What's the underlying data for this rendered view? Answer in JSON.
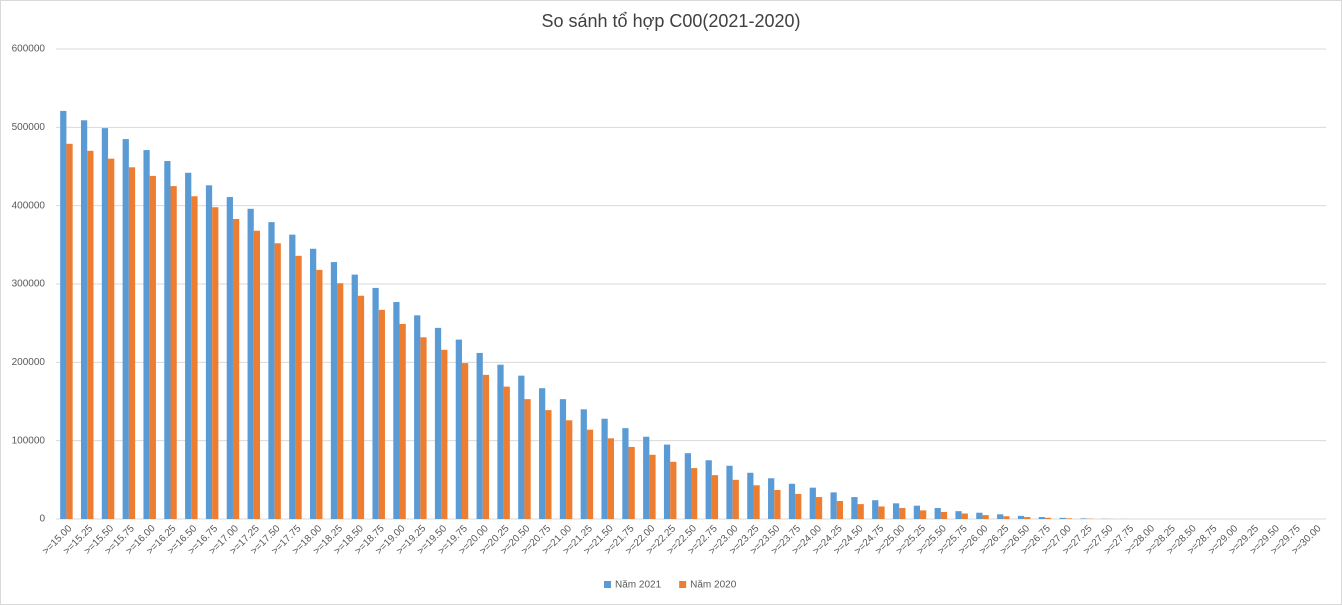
{
  "chart_data": {
    "type": "bar",
    "title": "So sánh tổ hợp C00(2021-2020)",
    "categories": [
      ">=15.00",
      ">=15.25",
      ">=15.50",
      ">=15.75",
      ">=16.00",
      ">=16.25",
      ">=16.50",
      ">=16.75",
      ">=17.00",
      ">=17.25",
      ">=17.50",
      ">=17.75",
      ">=18.00",
      ">=18.25",
      ">=18.50",
      ">=18.75",
      ">=19.00",
      ">=19.25",
      ">=19.50",
      ">=19.75",
      ">=20.00",
      ">=20.25",
      ">=20.50",
      ">=20.75",
      ">=21.00",
      ">=21.25",
      ">=21.50",
      ">=21.75",
      ">=22.00",
      ">=22.25",
      ">=22.50",
      ">=22.75",
      ">=23.00",
      ">=23.25",
      ">=23.50",
      ">=23.75",
      ">=24.00",
      ">=24.25",
      ">=24.50",
      ">=24.75",
      ">=25.00",
      ">=25.25",
      ">=25.50",
      ">=25.75",
      ">=26.00",
      ">=26.25",
      ">=26.50",
      ">=26.75",
      ">=27.00",
      ">=27.25",
      ">=27.50",
      ">=27.75",
      ">=28.00",
      ">=28.25",
      ">=28.50",
      ">=28.75",
      ">=29.00",
      ">=29.25",
      ">=29.50",
      ">=29.75",
      ">=30.00"
    ],
    "series": [
      {
        "name": "Năm 2021",
        "color": "#5b9bd5",
        "values": [
          521000,
          509000,
          499000,
          485000,
          471000,
          457000,
          442000,
          426000,
          411000,
          396000,
          379000,
          363000,
          345000,
          328000,
          312000,
          295000,
          277000,
          260000,
          244000,
          229000,
          212000,
          197000,
          183000,
          167000,
          153000,
          140000,
          128000,
          116000,
          105000,
          95000,
          84000,
          75000,
          68000,
          59000,
          52000,
          45000,
          40000,
          34000,
          28000,
          24000,
          20000,
          17000,
          14000,
          10000,
          8000,
          6000,
          4000,
          2500,
          1500,
          800,
          300,
          100,
          0,
          0,
          0,
          0,
          0,
          0,
          0,
          0,
          0
        ]
      },
      {
        "name": "Năm 2020",
        "color": "#ed7d31",
        "values": [
          479000,
          470000,
          460000,
          449000,
          438000,
          425000,
          412000,
          398000,
          383000,
          368000,
          352000,
          336000,
          318000,
          301000,
          285000,
          267000,
          249000,
          232000,
          216000,
          199000,
          184000,
          169000,
          153000,
          139000,
          126000,
          114000,
          103000,
          92000,
          82000,
          73000,
          65000,
          56000,
          50000,
          43000,
          37000,
          32000,
          28000,
          23000,
          19000,
          16000,
          14000,
          11000,
          9000,
          7000,
          5000,
          3500,
          2500,
          1500,
          800,
          400,
          150,
          0,
          0,
          0,
          0,
          0,
          0,
          0,
          0,
          0,
          0
        ]
      }
    ],
    "ylim": [
      0,
      600000
    ],
    "yticks": [
      0,
      100000,
      200000,
      300000,
      400000,
      500000,
      600000
    ],
    "grid": true,
    "legend": "bottom"
  }
}
